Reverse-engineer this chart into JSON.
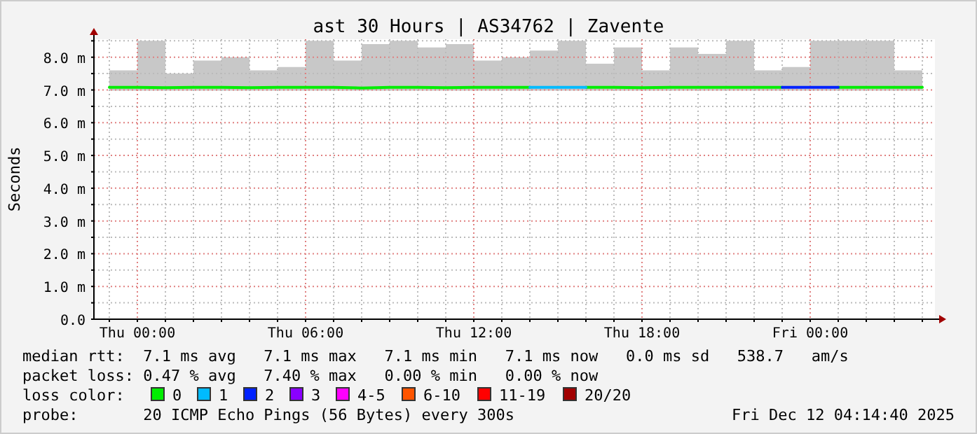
{
  "chart_data": {
    "type": "line",
    "title": "ast 30 Hours | AS34762 | Zavente",
    "ylabel": "Seconds",
    "x": [
      "2025-12-10T23:00",
      "2025-12-11T00:00",
      "2025-12-11T01:00",
      "2025-12-11T02:00",
      "2025-12-11T03:00",
      "2025-12-11T04:00",
      "2025-12-11T05:00",
      "2025-12-11T06:00",
      "2025-12-11T07:00",
      "2025-12-11T08:00",
      "2025-12-11T09:00",
      "2025-12-11T10:00",
      "2025-12-11T11:00",
      "2025-12-11T12:00",
      "2025-12-11T13:00",
      "2025-12-11T14:00",
      "2025-12-11T15:00",
      "2025-12-11T16:00",
      "2025-12-11T17:00",
      "2025-12-11T18:00",
      "2025-12-11T19:00",
      "2025-12-11T20:00",
      "2025-12-11T21:00",
      "2025-12-11T22:00",
      "2025-12-11T23:00",
      "2025-12-12T00:00",
      "2025-12-12T01:00",
      "2025-12-12T02:00",
      "2025-12-12T03:00",
      "2025-12-12T04:00"
    ],
    "series": [
      {
        "name": "0",
        "color": "#00ee00",
        "values": [
          7.08,
          7.08,
          7.07,
          7.08,
          7.08,
          7.07,
          7.08,
          7.08,
          7.08,
          7.06,
          7.08,
          7.08,
          7.07,
          7.08,
          7.08,
          7.08,
          null,
          7.08,
          7.08,
          7.07,
          7.08,
          7.08,
          7.08,
          7.08,
          7.08,
          null,
          7.08,
          7.08,
          7.08,
          7.08
        ],
        "lower": [
          6.98,
          6.98,
          6.98,
          6.98,
          6.98,
          6.98,
          6.98,
          6.98,
          6.98,
          6.98,
          6.98,
          6.98,
          6.98,
          6.98,
          6.98,
          6.98,
          6.98,
          6.98,
          6.98,
          6.98,
          6.98,
          6.98,
          6.98,
          6.98,
          6.98,
          6.98,
          6.98,
          6.98,
          6.98,
          6.98
        ],
        "upper": [
          7.6,
          8.5,
          7.5,
          7.9,
          8.0,
          7.6,
          7.7,
          8.5,
          7.9,
          8.4,
          8.5,
          8.3,
          8.4,
          7.9,
          8.0,
          8.2,
          8.5,
          7.8,
          8.3,
          7.6,
          8.3,
          8.1,
          8.5,
          7.6,
          7.7,
          8.5,
          8.5,
          8.5,
          7.6,
          7.4
        ]
      },
      {
        "name": "1",
        "color": "#00bbff",
        "values": [
          null,
          null,
          null,
          null,
          null,
          null,
          null,
          null,
          null,
          null,
          null,
          null,
          null,
          null,
          null,
          7.08,
          7.08,
          7.08,
          null,
          null,
          null,
          null,
          null,
          null,
          null,
          null,
          null,
          null,
          null,
          null
        ]
      },
      {
        "name": "2",
        "color": "#0022ff",
        "values": [
          null,
          null,
          null,
          null,
          null,
          null,
          null,
          null,
          null,
          null,
          null,
          null,
          null,
          null,
          null,
          null,
          null,
          null,
          null,
          null,
          null,
          null,
          null,
          null,
          7.08,
          7.08,
          7.08,
          null,
          null,
          null
        ]
      },
      {
        "name": "3",
        "color": "#8a00ff",
        "values": [
          null,
          null,
          null,
          null,
          null,
          null,
          null,
          null,
          null,
          null,
          null,
          null,
          null,
          null,
          null,
          null,
          null,
          null,
          null,
          null,
          null,
          null,
          null,
          null,
          null,
          null,
          null,
          null,
          null,
          null
        ]
      },
      {
        "name": "4-5",
        "color": "#ff00ff",
        "values": [
          null,
          null,
          null,
          null,
          null,
          null,
          null,
          null,
          null,
          null,
          null,
          null,
          null,
          null,
          null,
          null,
          null,
          null,
          null,
          null,
          null,
          null,
          null,
          null,
          null,
          null,
          null,
          null,
          null,
          null
        ]
      },
      {
        "name": "6-10",
        "color": "#ff5500",
        "values": [
          null,
          null,
          null,
          null,
          null,
          null,
          null,
          null,
          null,
          null,
          null,
          null,
          null,
          null,
          null,
          null,
          null,
          null,
          null,
          null,
          null,
          null,
          null,
          null,
          null,
          null,
          null,
          null,
          null,
          null
        ]
      },
      {
        "name": "11-19",
        "color": "#ff0000",
        "values": [
          null,
          null,
          null,
          null,
          null,
          null,
          null,
          null,
          null,
          null,
          null,
          null,
          null,
          null,
          null,
          null,
          null,
          null,
          null,
          null,
          null,
          null,
          null,
          null,
          null,
          null,
          null,
          null,
          null,
          null
        ]
      },
      {
        "name": "20/20",
        "color": "#a10000",
        "values": [
          null,
          null,
          null,
          null,
          null,
          null,
          null,
          null,
          null,
          null,
          null,
          null,
          null,
          null,
          null,
          null,
          null,
          null,
          null,
          null,
          null,
          null,
          null,
          null,
          null,
          null,
          null,
          null,
          null,
          null
        ]
      }
    ],
    "xlim": [
      "2025-12-10T22:27",
      "2025-12-12T04:27"
    ],
    "xticks": [
      {
        "value": "2025-12-10T23:00",
        "label": null
      },
      {
        "value": "2025-12-11T00:00",
        "label": "Thu 00:00"
      },
      {
        "value": "2025-12-11T01:00",
        "label": null
      },
      {
        "value": "2025-12-11T02:00",
        "label": null
      },
      {
        "value": "2025-12-11T03:00",
        "label": null
      },
      {
        "value": "2025-12-11T04:00",
        "label": null
      },
      {
        "value": "2025-12-11T05:00",
        "label": null
      },
      {
        "value": "2025-12-11T06:00",
        "label": "Thu 06:00"
      },
      {
        "value": "2025-12-11T07:00",
        "label": null
      },
      {
        "value": "2025-12-11T08:00",
        "label": null
      },
      {
        "value": "2025-12-11T09:00",
        "label": null
      },
      {
        "value": "2025-12-11T10:00",
        "label": null
      },
      {
        "value": "2025-12-11T11:00",
        "label": null
      },
      {
        "value": "2025-12-11T12:00",
        "label": "Thu 12:00"
      },
      {
        "value": "2025-12-11T13:00",
        "label": null
      },
      {
        "value": "2025-12-11T14:00",
        "label": null
      },
      {
        "value": "2025-12-11T15:00",
        "label": null
      },
      {
        "value": "2025-12-11T16:00",
        "label": null
      },
      {
        "value": "2025-12-11T17:00",
        "label": null
      },
      {
        "value": "2025-12-11T18:00",
        "label": "Thu 18:00"
      },
      {
        "value": "2025-12-11T19:00",
        "label": null
      },
      {
        "value": "2025-12-11T20:00",
        "label": null
      },
      {
        "value": "2025-12-11T21:00",
        "label": null
      },
      {
        "value": "2025-12-11T22:00",
        "label": null
      },
      {
        "value": "2025-12-11T23:00",
        "label": null
      },
      {
        "value": "2025-12-12T00:00",
        "label": "Fri 00:00"
      },
      {
        "value": "2025-12-12T01:00",
        "label": null
      },
      {
        "value": "2025-12-12T02:00",
        "label": null
      },
      {
        "value": "2025-12-12T03:00",
        "label": null
      },
      {
        "value": "2025-12-12T04:00",
        "label": null
      }
    ],
    "ylim": [
      0,
      8.55
    ],
    "yticks": [
      {
        "value": 0,
        "label": "0.0"
      },
      {
        "value": 0.5,
        "label": null
      },
      {
        "value": 1,
        "label": "1.0 m"
      },
      {
        "value": 1.5,
        "label": null
      },
      {
        "value": 2,
        "label": "2.0 m"
      },
      {
        "value": 2.5,
        "label": null
      },
      {
        "value": 3,
        "label": "3.0 m"
      },
      {
        "value": 3.5,
        "label": null
      },
      {
        "value": 4,
        "label": "4.0 m"
      },
      {
        "value": 4.5,
        "label": null
      },
      {
        "value": 5,
        "label": "5.0 m"
      },
      {
        "value": 5.5,
        "label": null
      },
      {
        "value": 6,
        "label": "6.0 m"
      },
      {
        "value": 6.5,
        "label": null
      },
      {
        "value": 7,
        "label": "7.0 m"
      },
      {
        "value": 7.5,
        "label": null
      },
      {
        "value": 8,
        "label": "8.0 m"
      },
      {
        "value": 8.5,
        "label": null
      }
    ],
    "grid": true,
    "legend": "bottom",
    "legend_title": "loss color:",
    "annotations": [
      "median rtt:  7.1 ms avg   7.1 ms max   7.1 ms min   7.1 ms now   0.0 ms sd   538.7   am/s",
      "packet loss: 0.47 % avg   7.40 % max   0.00 % min   0.00 % now",
      "probe:       20 ICMP Echo Pings (56 Bytes) every 300s",
      "Fri Dec 12 04:14:40 2025"
    ]
  }
}
